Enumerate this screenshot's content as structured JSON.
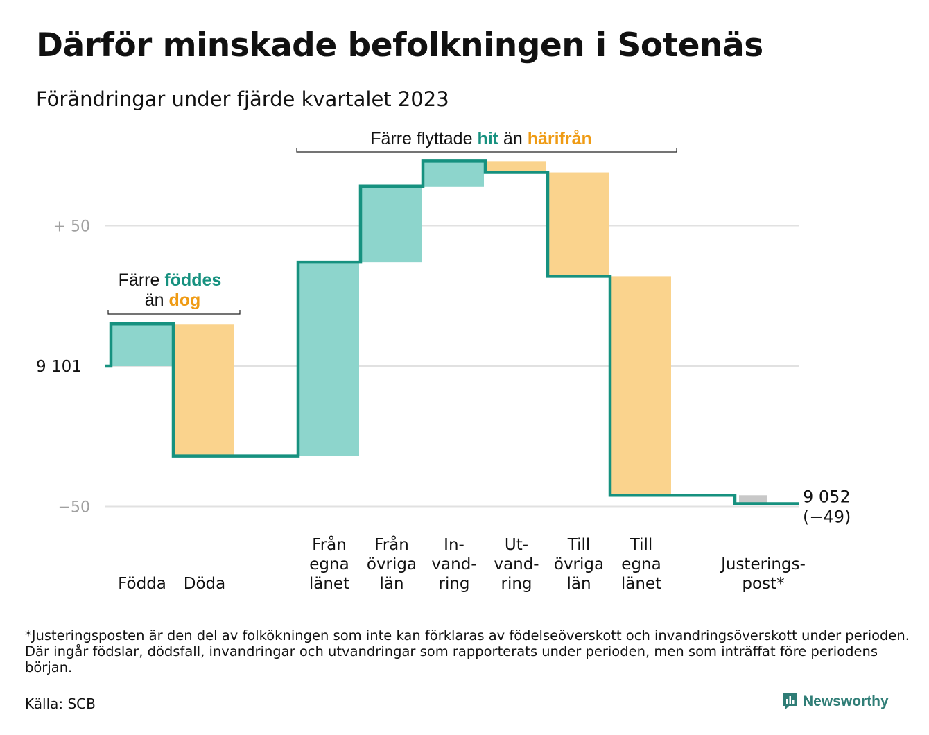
{
  "title": "Därför minskade befolkningen i Sotenäs",
  "subtitle": "Förändringar under fjärde kvartalet 2023",
  "colors": {
    "increase": "#8dd5cc",
    "decrease": "#fad38d",
    "adjustment": "#c8c8c8",
    "line": "#16917f",
    "teal_text": "#16917f",
    "orange_text": "#ef9b14",
    "grid": "#e1e1e1",
    "axis_text": "#a0a0a0"
  },
  "annotations": {
    "births": {
      "line1_pre": "Färre ",
      "line1_hl": "föddes",
      "line2_pre": "än ",
      "line2_hl": "dog"
    },
    "migration": {
      "pre": "Färre flyttade ",
      "hl1": "hit",
      "mid": " än ",
      "hl2": "härifrån"
    }
  },
  "end_label": {
    "value": "9 052",
    "change": "(−49)"
  },
  "start_label": "9  101",
  "chart_data": {
    "type": "waterfall",
    "start": 0,
    "end": -49,
    "categories": [
      {
        "id": "fodda",
        "lines": [
          "Födda"
        ]
      },
      {
        "id": "doda",
        "lines": [
          "Döda"
        ]
      },
      {
        "id": "gap",
        "lines": []
      },
      {
        "id": "fran_egna",
        "lines": [
          "Från",
          "egna",
          "länet"
        ]
      },
      {
        "id": "fran_ovriga",
        "lines": [
          "Från",
          "övriga",
          "län"
        ]
      },
      {
        "id": "invandring",
        "lines": [
          "In-",
          "vand-",
          "ring"
        ]
      },
      {
        "id": "utvandring",
        "lines": [
          "Ut-",
          "vand-",
          "ring"
        ]
      },
      {
        "id": "till_ovriga",
        "lines": [
          "Till",
          "övriga",
          "län"
        ]
      },
      {
        "id": "till_egna",
        "lines": [
          "Till",
          "egna",
          "länet"
        ]
      },
      {
        "id": "gap2",
        "lines": []
      },
      {
        "id": "justering",
        "lines": [
          "Justerings-",
          "post*"
        ]
      }
    ],
    "values": [
      15,
      -47,
      0,
      69,
      27,
      9,
      -4,
      -37,
      -78,
      0,
      -3
    ],
    "y_ticks": [
      {
        "value": 50,
        "label": "+  50"
      },
      {
        "value": 0,
        "label": ""
      },
      {
        "value": -50,
        "label": "−50"
      }
    ],
    "ylim": [
      -52,
      80
    ]
  },
  "footnote": "*Justeringsposten är den del av folkökningen som inte kan förklaras av födelseöverskott och invandringsöverskott under perioden. Där ingår födslar, dödsfall, invandringar och utvandringar som rapporterats under perioden, men som inträffat före periodens början.",
  "source": "Källa: SCB",
  "brand": "Newsworthy"
}
